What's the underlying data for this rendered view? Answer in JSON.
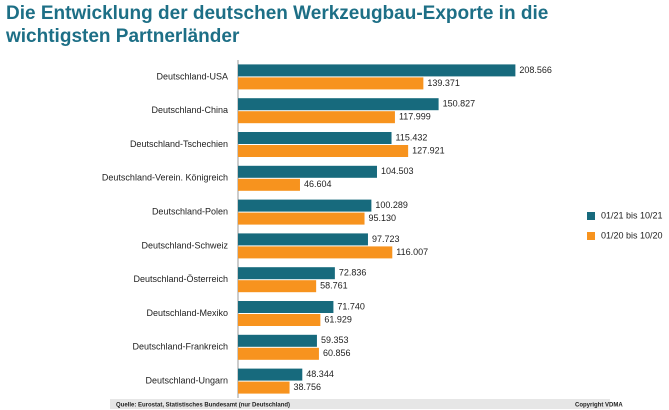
{
  "chart_data": {
    "type": "hbar",
    "title": "Die Entwicklung der deutschen Werkzeugbau-Exporte in die wichtigsten Partnerländer",
    "categories": [
      "Deutschland-USA",
      "Deutschland-China",
      "Deutschland-Tschechien",
      "Deutschland-Verein. Königreich",
      "Deutschland-Polen",
      "Deutschland-Schweiz",
      "Deutschland-Österreich",
      "Deutschland-Mexiko",
      "Deutschland-Frankreich",
      "Deutschland-Ungarn"
    ],
    "series": [
      {
        "name": "01/21 bis 10/21",
        "color": "#176a7d",
        "values": [
          208566,
          150827,
          115432,
          104503,
          100289,
          97723,
          72836,
          71740,
          59353,
          48344
        ],
        "value_labels": [
          "208.566",
          "150.827",
          "115.432",
          "104.503",
          "100.289",
          "97.723",
          "72.836",
          "71.740",
          "59.353",
          "48.344"
        ]
      },
      {
        "name": "01/20 bis 10/20",
        "color": "#f7931e",
        "values": [
          139371,
          117999,
          127921,
          46604,
          95130,
          116007,
          58761,
          61929,
          60856,
          38756
        ],
        "value_labels": [
          "139.371",
          "117.999",
          "127.921",
          "46.604",
          "95.130",
          "116.007",
          "58.761",
          "61.929",
          "60.856",
          "38.756"
        ]
      }
    ],
    "xlim": [
      0,
      300000
    ],
    "source": "Quelle: Eurostat, Statistisches Bundesamt (nur Deutschland)",
    "copyright": "Copyright VDMA"
  }
}
